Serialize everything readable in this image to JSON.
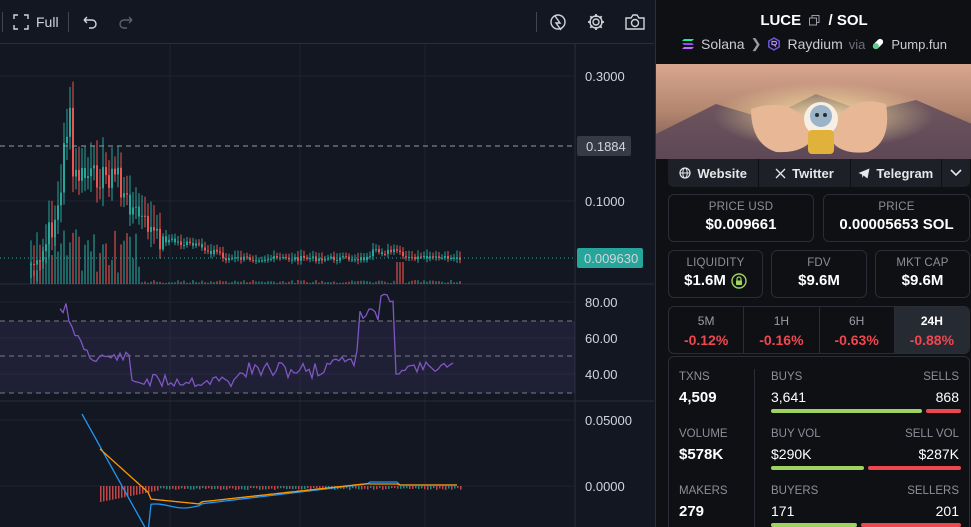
{
  "toolbar": {
    "full_label": "Full"
  },
  "chart_data": {
    "type": "candlestick",
    "price_axis": {
      "ticks": [
        "0.3000",
        "0.1000"
      ],
      "log_scale": true
    },
    "rsi_axis": {
      "ticks": [
        "80.00",
        "60.00",
        "40.00"
      ]
    },
    "macd_axis": {
      "ticks": [
        "0.05000",
        "0.0000"
      ]
    },
    "crosshair_price": "0.1884",
    "last_price": "0.009630",
    "colors": {
      "up": "#26a69a",
      "down": "#ef5350",
      "rsi": "#7e57c2",
      "macd": "#2196f3",
      "signal": "#ff9800"
    }
  },
  "pair": {
    "base": "LUCE",
    "separator": "/",
    "quote": "SOL",
    "chain": "Solana",
    "dex": "Raydium",
    "via_label": "via",
    "launchpad": "Pump.fun"
  },
  "links": {
    "website": "Website",
    "twitter": "Twitter",
    "telegram": "Telegram"
  },
  "price": {
    "usd_label": "PRICE USD",
    "usd_value": "$0.009661",
    "native_label": "PRICE",
    "native_value": "0.00005653 SOL"
  },
  "metrics": {
    "liquidity_label": "LIQUIDITY",
    "liquidity_value": "$1.6M",
    "fdv_label": "FDV",
    "fdv_value": "$9.6M",
    "mcap_label": "MKT CAP",
    "mcap_value": "$9.6M"
  },
  "timeframes": [
    {
      "label": "5M",
      "change": "-0.12%"
    },
    {
      "label": "1H",
      "change": "-0.16%"
    },
    {
      "label": "6H",
      "change": "-0.63%"
    },
    {
      "label": "24H",
      "change": "-0.88%"
    }
  ],
  "stats": {
    "txns_label": "TXNS",
    "txns_value": "4,509",
    "volume_label": "VOLUME",
    "volume_value": "$578K",
    "makers_label": "MAKERS",
    "makers_value": "279",
    "buys_label": "BUYS",
    "buys_value": "3,641",
    "sells_label": "SELLS",
    "sells_value": "868",
    "buys_fraction": 0.81,
    "buyvol_label": "BUY VOL",
    "buyvol_value": "$290K",
    "sellvol_label": "SELL VOL",
    "sellvol_value": "$287K",
    "buyvol_fraction": 0.5,
    "buyers_label": "BUYERS",
    "buyers_value": "171",
    "sellers_label": "SELLERS",
    "sellers_value": "201",
    "buyers_fraction": 0.46
  }
}
